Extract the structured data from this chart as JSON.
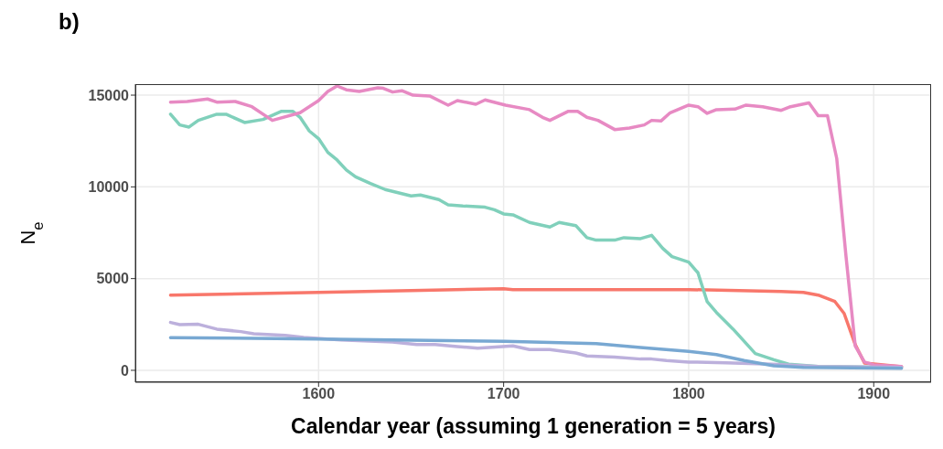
{
  "chart_data": {
    "type": "line",
    "title": "b)",
    "xlabel": "Calendar year (assuming 1 generation = 5 years)",
    "ylabel": "N$_{e}$",
    "xlim": [
      1501,
      1931
    ],
    "ylim": [
      -650,
      15600
    ],
    "xticks": [
      1600,
      1700,
      1800,
      1900
    ],
    "yticks": [
      0,
      5000,
      10000,
      15000
    ],
    "grid": true,
    "legend": false,
    "marker": "none",
    "line_style": "solid",
    "series": [
      {
        "color": "#f8776b",
        "x": [
          1520,
          1600,
          1650,
          1700,
          1705,
          1800,
          1850,
          1862,
          1870,
          1879,
          1884,
          1890,
          1895,
          1915
        ],
        "values": [
          4100,
          4250,
          4350,
          4450,
          4400,
          4400,
          4300,
          4250,
          4100,
          3750,
          3100,
          1400,
          400,
          200
        ]
      },
      {
        "color": "#80d0bb",
        "x": [
          1520,
          1525,
          1530,
          1535,
          1545,
          1550,
          1560,
          1570,
          1580,
          1586,
          1590,
          1595,
          1600,
          1605,
          1610,
          1615,
          1620,
          1628,
          1636,
          1650,
          1655,
          1665,
          1670,
          1678,
          1690,
          1695,
          1700,
          1705,
          1714,
          1725,
          1730,
          1739,
          1745,
          1750,
          1760,
          1765,
          1774,
          1780,
          1786,
          1791,
          1800,
          1805,
          1810,
          1815,
          1824,
          1836,
          1846,
          1854,
          1870,
          1915
        ],
        "values": [
          13960,
          13375,
          13260,
          13625,
          13960,
          13960,
          13510,
          13675,
          14120,
          14120,
          13790,
          13045,
          12630,
          11880,
          11465,
          10920,
          10550,
          10185,
          9855,
          9505,
          9555,
          9305,
          9025,
          8960,
          8890,
          8755,
          8525,
          8475,
          8060,
          7810,
          8060,
          7890,
          7230,
          7095,
          7095,
          7230,
          7180,
          7360,
          6645,
          6200,
          5900,
          5320,
          3740,
          3155,
          2245,
          915,
          580,
          335,
          215,
          165
        ]
      },
      {
        "color": "#e78ac3",
        "x": [
          1520,
          1529,
          1540,
          1545,
          1555,
          1564,
          1575,
          1590,
          1600,
          1605,
          1610,
          1615,
          1622,
          1632,
          1635,
          1640,
          1645,
          1651,
          1660,
          1670,
          1675,
          1685,
          1690,
          1701,
          1714,
          1721,
          1725,
          1735,
          1740,
          1745,
          1751,
          1760,
          1768,
          1776,
          1780,
          1785,
          1790,
          1800,
          1805,
          1810,
          1815,
          1825,
          1831,
          1840,
          1850,
          1855,
          1865,
          1870,
          1875,
          1880,
          1885,
          1890,
          1895,
          1900,
          1915
        ],
        "values": [
          14620,
          14655,
          14790,
          14620,
          14655,
          14370,
          13625,
          14040,
          14705,
          15200,
          15500,
          15290,
          15200,
          15400,
          15370,
          15170,
          15240,
          15000,
          14955,
          14455,
          14705,
          14505,
          14740,
          14455,
          14210,
          13790,
          13625,
          14120,
          14120,
          13790,
          13625,
          13125,
          13210,
          13375,
          13625,
          13590,
          14040,
          14455,
          14370,
          14005,
          14205,
          14240,
          14455,
          14370,
          14170,
          14370,
          14575,
          13875,
          13875,
          11550,
          6230,
          1330,
          450,
          300,
          215
        ]
      },
      {
        "color": "#bcb0dc",
        "x": [
          1520,
          1525,
          1535,
          1545,
          1558,
          1565,
          1582,
          1592,
          1612,
          1640,
          1653,
          1663,
          1675,
          1686,
          1705,
          1714,
          1725,
          1739,
          1745,
          1760,
          1774,
          1780,
          1788,
          1800,
          1820,
          1845,
          1870,
          1915
        ],
        "values": [
          2610,
          2490,
          2510,
          2245,
          2110,
          1995,
          1910,
          1795,
          1660,
          1545,
          1410,
          1410,
          1295,
          1210,
          1330,
          1130,
          1130,
          945,
          780,
          715,
          615,
          615,
          530,
          450,
          415,
          335,
          215,
          165
        ]
      },
      {
        "color": "#78a8d2",
        "x": [
          1520,
          1600,
          1650,
          1701,
          1750,
          1774,
          1800,
          1815,
          1830,
          1846,
          1862,
          1915
        ],
        "values": [
          1780,
          1710,
          1645,
          1580,
          1460,
          1245,
          1030,
          860,
          530,
          250,
          165,
          115
        ]
      }
    ]
  }
}
